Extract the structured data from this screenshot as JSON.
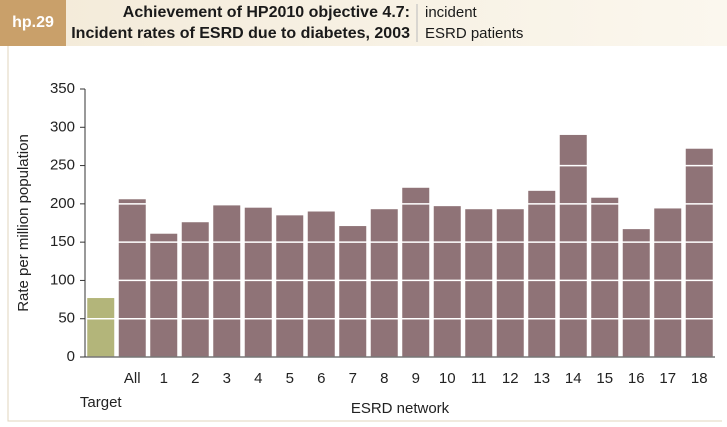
{
  "header": {
    "code": "hp.29",
    "title": [
      "Achievement of HP2010 objective 4.7:",
      "Incident rates of ESRD due to diabetes, 2003"
    ],
    "legend": [
      "incident",
      "ESRD patients"
    ]
  },
  "chart_data": {
    "type": "bar",
    "ylabel": "Rate per million population",
    "xlabel": "ESRD network",
    "categories": [
      "Target",
      "All",
      "1",
      "2",
      "3",
      "4",
      "5",
      "6",
      "7",
      "8",
      "9",
      "10",
      "11",
      "12",
      "13",
      "14",
      "15",
      "16",
      "17",
      "18"
    ],
    "values": [
      77,
      206,
      161,
      176,
      198,
      195,
      185,
      190,
      171,
      193,
      221,
      197,
      193,
      193,
      217,
      290,
      208,
      167,
      194,
      272
    ],
    "colors": [
      "#b3b57a",
      "#8f7377",
      "#8f7377",
      "#8f7377",
      "#8f7377",
      "#8f7377",
      "#8f7377",
      "#8f7377",
      "#8f7377",
      "#8f7377",
      "#8f7377",
      "#8f7377",
      "#8f7377",
      "#8f7377",
      "#8f7377",
      "#8f7377",
      "#8f7377",
      "#8f7377",
      "#8f7377",
      "#8f7377"
    ],
    "ylim": [
      0,
      350
    ],
    "yticks": [
      0,
      50,
      100,
      150,
      200,
      250,
      300,
      350
    ],
    "grid": true
  }
}
